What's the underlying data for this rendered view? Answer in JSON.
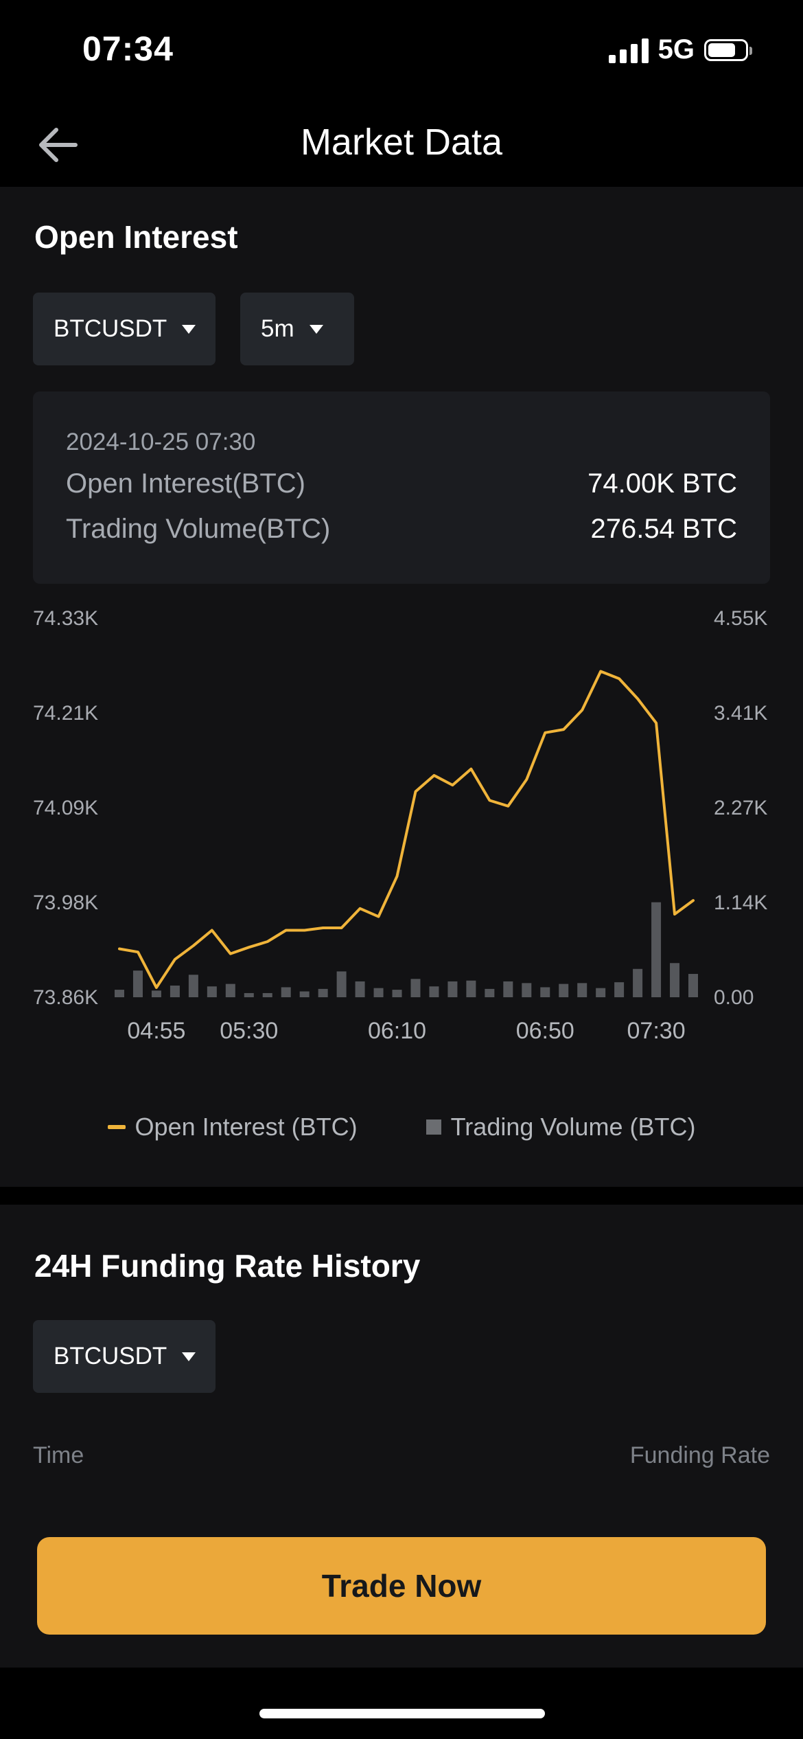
{
  "status_bar": {
    "time": "07:34",
    "network": "5G",
    "battery_level": 0.75
  },
  "header": {
    "title": "Market Data",
    "back_icon": "arrow-left-icon"
  },
  "open_interest": {
    "title": "Open Interest",
    "symbol_select": "BTCUSDT",
    "interval_select": "5m",
    "tooltip": {
      "date": "2024-10-25 07:30",
      "oi_label": "Open Interest(BTC)",
      "oi_value": "74.00K BTC",
      "vol_label": "Trading Volume(BTC)",
      "vol_value": "276.54 BTC"
    },
    "legend": {
      "oi": "Open Interest (BTC)",
      "vol": "Trading Volume (BTC)"
    }
  },
  "funding": {
    "title": "24H Funding Rate History",
    "symbol_select": "BTCUSDT",
    "col_time": "Time",
    "col_rate": "Funding Rate"
  },
  "trade_button": "Trade Now",
  "colors": {
    "accent": "#eba83a",
    "line": "#f0b43a",
    "bar": "#55575b"
  },
  "chart_data": {
    "type": "line",
    "x_tick_labels": [
      "04:55",
      "05:30",
      "06:10",
      "06:50",
      "07:30"
    ],
    "y_left_ticks": [
      "74.33K",
      "74.21K",
      "74.09K",
      "73.98K",
      "73.86K"
    ],
    "y_right_ticks": [
      "4.55K",
      "3.41K",
      "2.27K",
      "1.14K",
      "0.00"
    ],
    "ylim_left": [
      73.86,
      74.33
    ],
    "ylim_right": [
      0,
      4.55
    ],
    "grid": false,
    "legend_position": "bottom",
    "series": [
      {
        "name": "Open Interest (BTC)",
        "axis": "left",
        "values": [
          73.92,
          73.916,
          73.872,
          73.907,
          73.924,
          73.943,
          73.914,
          73.922,
          73.929,
          73.943,
          73.943,
          73.946,
          73.946,
          73.97,
          73.96,
          74.01,
          74.115,
          74.135,
          74.123,
          74.143,
          74.104,
          74.097,
          74.13,
          74.188,
          74.192,
          74.216,
          74.264,
          74.255,
          74.23,
          74.2,
          73.963,
          73.98
        ]
      },
      {
        "name": "Trading Volume (BTC)",
        "axis": "right",
        "values": [
          0.09,
          0.32,
          0.08,
          0.14,
          0.27,
          0.13,
          0.16,
          0.05,
          0.05,
          0.12,
          0.07,
          0.1,
          0.31,
          0.19,
          0.11,
          0.09,
          0.22,
          0.13,
          0.19,
          0.2,
          0.1,
          0.19,
          0.17,
          0.12,
          0.16,
          0.17,
          0.11,
          0.18,
          0.34,
          1.14,
          0.41,
          0.28
        ]
      }
    ]
  }
}
